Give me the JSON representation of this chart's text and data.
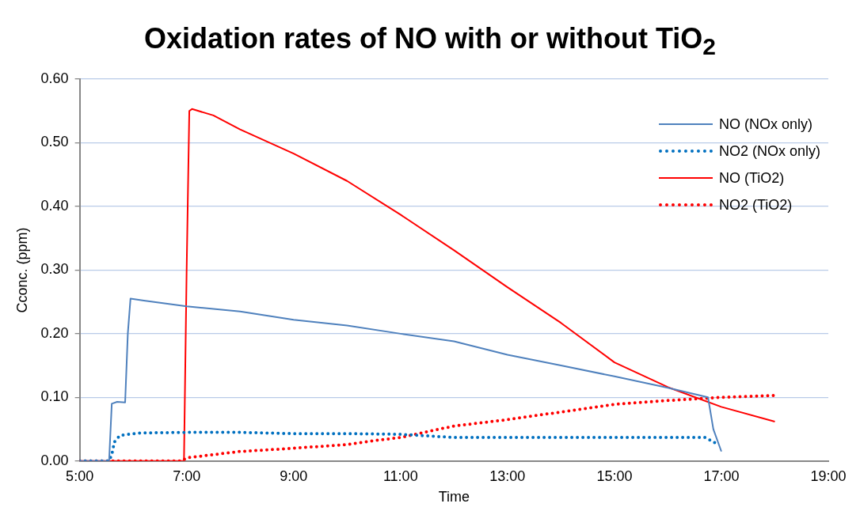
{
  "chart_data": {
    "type": "line",
    "title": "Oxidation rates of NO with or without TiO$_{2}$",
    "xlabel": "Time",
    "ylabel": "Cconc. (ppm)",
    "xlim": [
      5,
      19
    ],
    "xticks": [
      {
        "value": 5,
        "label": "5:00"
      },
      {
        "value": 7,
        "label": "7:00"
      },
      {
        "value": 9,
        "label": "9:00"
      },
      {
        "value": 11,
        "label": "11:00"
      },
      {
        "value": 13,
        "label": "13:00"
      },
      {
        "value": 15,
        "label": "15:00"
      },
      {
        "value": 17,
        "label": "17:00"
      },
      {
        "value": 19,
        "label": "19:00"
      }
    ],
    "ylim": [
      0,
      0.6
    ],
    "yticks": [
      {
        "value": 0,
        "label": "0.00"
      },
      {
        "value": 0.1,
        "label": "0.10"
      },
      {
        "value": 0.2,
        "label": "0.20"
      },
      {
        "value": 0.3,
        "label": "0.30"
      },
      {
        "value": 0.4,
        "label": "0.40"
      },
      {
        "value": 0.5,
        "label": "0.50"
      },
      {
        "value": 0.6,
        "label": "0.60"
      }
    ],
    "grid": "y",
    "legend": "top right",
    "marker": "none",
    "series": [
      {
        "name": "NO (NOx only)",
        "color": "#4f81bd",
        "line_style": "solid",
        "x": [
          5,
          5.55,
          5.6,
          5.7,
          5.85,
          5.9,
          5.95,
          6.2,
          7,
          8,
          9,
          10,
          11,
          12,
          13,
          14,
          15,
          16,
          16.75,
          16.85,
          17
        ],
        "values": [
          0,
          0,
          0.09,
          0.093,
          0.092,
          0.2,
          0.255,
          0.252,
          0.243,
          0.235,
          0.222,
          0.213,
          0.2,
          0.188,
          0.167,
          0.15,
          0.133,
          0.115,
          0.1,
          0.05,
          0.015
        ]
      },
      {
        "name": "NO2 (NOx only)",
        "color": "#0070c0",
        "line_style": "dotted",
        "x": [
          5,
          5.55,
          5.6,
          5.65,
          5.75,
          6.1,
          7,
          8,
          9,
          10,
          11,
          12,
          13,
          14,
          15,
          16,
          16.7,
          16.85,
          16.95
        ],
        "values": [
          0,
          0,
          0.01,
          0.03,
          0.04,
          0.044,
          0.045,
          0.045,
          0.043,
          0.043,
          0.042,
          0.037,
          0.037,
          0.037,
          0.037,
          0.037,
          0.037,
          0.03,
          0.025
        ]
      },
      {
        "name": "NO (TiO2)",
        "color": "#ff0000",
        "line_style": "solid",
        "x": [
          5,
          6.95,
          7.0,
          7.05,
          7.1,
          7.5,
          8,
          9,
          10,
          11,
          12,
          13,
          14,
          15,
          16,
          17,
          18
        ],
        "values": [
          0,
          0,
          0.3,
          0.55,
          0.553,
          0.543,
          0.521,
          0.483,
          0.44,
          0.387,
          0.331,
          0.273,
          0.217,
          0.155,
          0.116,
          0.085,
          0.062
        ]
      },
      {
        "name": "NO2 (TiO2)",
        "color": "#ff0000",
        "line_style": "dotted",
        "x": [
          5,
          6.9,
          7,
          7.5,
          8,
          9,
          10,
          10.5,
          11,
          11.5,
          12,
          13,
          14,
          15,
          16,
          17,
          18
        ],
        "values": [
          0,
          0,
          0.005,
          0.01,
          0.015,
          0.02,
          0.026,
          0.032,
          0.037,
          0.046,
          0.055,
          0.065,
          0.077,
          0.089,
          0.095,
          0.1,
          0.103
        ]
      }
    ]
  }
}
